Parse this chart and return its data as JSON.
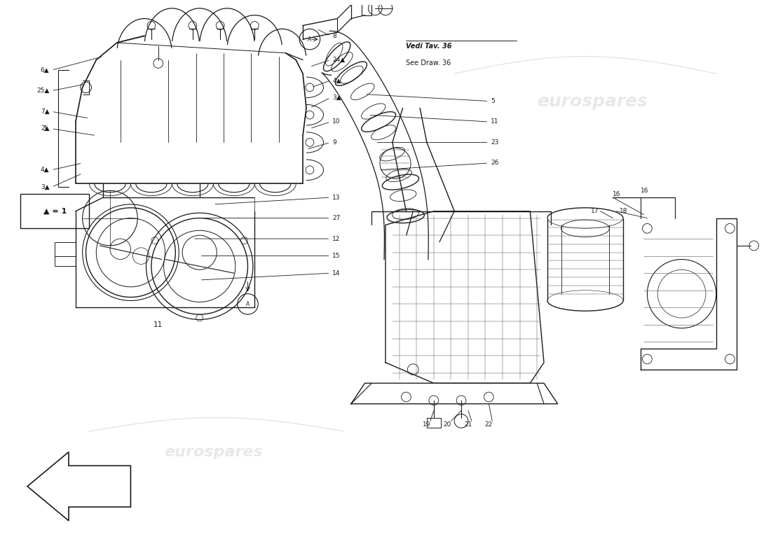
{
  "bg": "#ffffff",
  "lc": "#1a1a1a",
  "wm_color": "#cccccc",
  "wm_alpha": 0.45,
  "watermark": "eurospares",
  "ref1": "Vedi Tav. 36",
  "ref2": "See Draw. 36",
  "legend": "▲ = 1",
  "fig_w": 11.0,
  "fig_h": 8.0,
  "dpi": 100
}
